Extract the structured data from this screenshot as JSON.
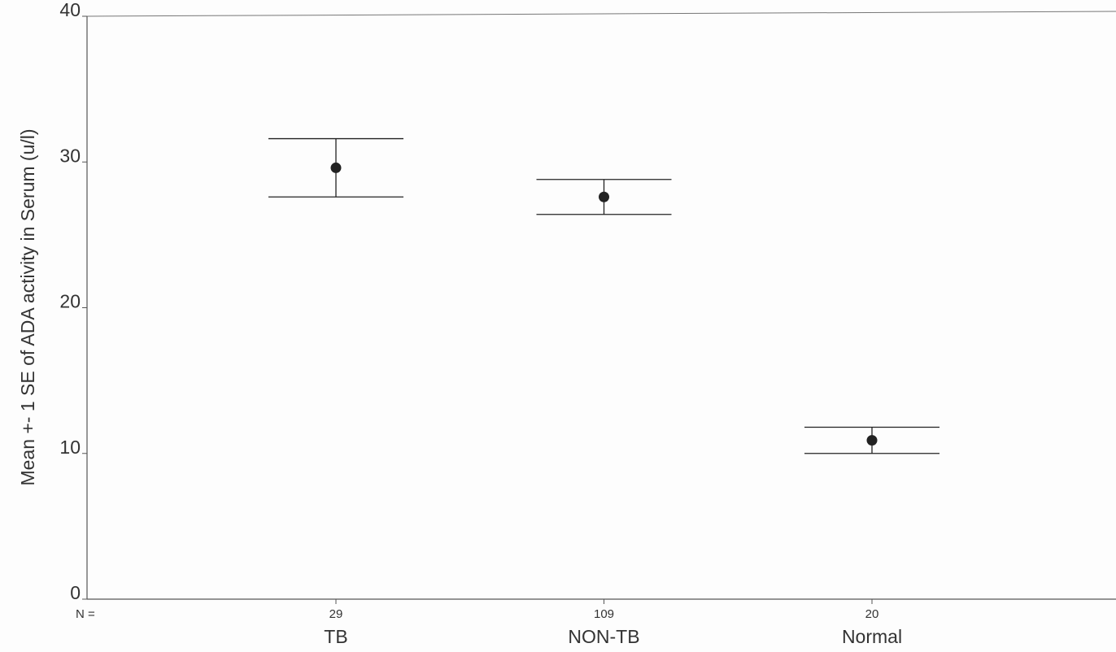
{
  "chart_data": {
    "type": "errorbar",
    "ylabel": "Mean +- 1 SE of ADA activity in Serum (u/l)",
    "categories": [
      "TB",
      "NON-TB",
      "Normal"
    ],
    "values": [
      29.6,
      27.6,
      10.9
    ],
    "errors": [
      2.0,
      1.2,
      0.9
    ],
    "n_label": "N =",
    "n_values": [
      29,
      109,
      20
    ],
    "color": "#222222",
    "ylim": [
      0,
      40
    ],
    "yticks": [
      0,
      10,
      20,
      30,
      40
    ]
  }
}
